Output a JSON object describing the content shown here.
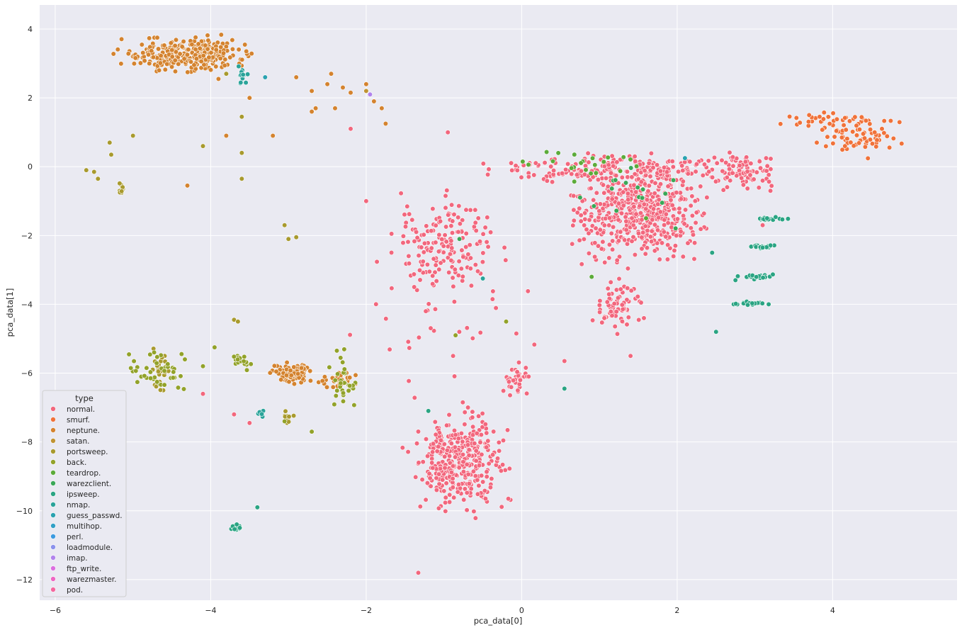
{
  "chart_data": {
    "type": "scatter",
    "title": "",
    "xlabel": "pca_data[0]",
    "ylabel": "pca_data[1]",
    "xlim": [
      -6.2,
      5.6
    ],
    "ylim": [
      -12.6,
      4.7
    ],
    "xticks": [
      -6,
      -4,
      -2,
      0,
      2,
      4
    ],
    "yticks": [
      -12,
      -10,
      -8,
      -6,
      -4,
      -2,
      0,
      2,
      4
    ],
    "grid": true,
    "legend": {
      "title": "type",
      "placement": "lower-left"
    },
    "series": [
      {
        "name": "normal.",
        "color": "#f2677d",
        "clusters": [
          {
            "x": [
              0.4,
              2.6
            ],
            "y": [
              -3.2,
              0.6
            ],
            "n": 520
          },
          {
            "x": [
              -1.6,
              0.0
            ],
            "y": [
              -10.4,
              -6.8
            ],
            "n": 360
          },
          {
            "x": [
              -2.0,
              0.0
            ],
            "y": [
              -4.2,
              -0.3
            ],
            "n": 160
          },
          {
            "x": [
              -1.0,
              3.5
            ],
            "y": [
              -0.6,
              0.5
            ],
            "n": 200
          },
          {
            "x": [
              0.8,
              1.7
            ],
            "y": [
              -5.0,
              -3.0
            ],
            "n": 70
          },
          {
            "x": [
              2.2,
              3.5
            ],
            "y": [
              -0.8,
              0.5
            ],
            "n": 80
          },
          {
            "x": [
              -0.3,
              0.2
            ],
            "y": [
              -7.0,
              -5.4
            ],
            "n": 35
          },
          {
            "x": [
              -2.4,
              0.5
            ],
            "y": [
              -7.8,
              -0.9
            ],
            "n": 40
          }
        ],
        "points": [
          [
            -1.33,
            -11.8
          ],
          [
            -4.1,
            -6.6
          ],
          [
            -3.7,
            -7.2
          ],
          [
            -3.5,
            -7.45
          ],
          [
            -2.2,
            1.1
          ],
          [
            -2.0,
            -1.0
          ],
          [
            -0.95,
            1.0
          ],
          [
            1.4,
            -5.5
          ],
          [
            0.55,
            -5.65
          ],
          [
            3.1,
            -1.7
          ],
          [
            3.2,
            -0.7
          ]
        ]
      },
      {
        "name": "smurf.",
        "color": "#f0723a",
        "clusters": [
          {
            "x": [
              3.5,
              5.1
            ],
            "y": [
              0.2,
              1.6
            ],
            "n": 70
          },
          {
            "x": [
              3.0,
              4.8
            ],
            "y": [
              1.05,
              1.7
            ],
            "n": 30
          }
        ],
        "points": []
      },
      {
        "name": "neptune.",
        "color": "#d4832f",
        "clusters": [
          {
            "x": [
              -5.3,
              -3.3
            ],
            "y": [
              2.6,
              3.95
            ],
            "n": 300
          },
          {
            "x": [
              -3.3,
              -2.6
            ],
            "y": [
              -6.4,
              -5.6
            ],
            "n": 90
          },
          {
            "x": [
              -2.7,
              -2.0
            ],
            "y": [
              -6.6,
              -5.8
            ],
            "n": 30
          }
        ],
        "points": [
          [
            -2.9,
            2.6
          ],
          [
            -2.7,
            2.2
          ],
          [
            -2.45,
            2.7
          ],
          [
            -2.5,
            2.4
          ],
          [
            -2.3,
            2.3
          ],
          [
            -2.2,
            2.15
          ],
          [
            -2.0,
            2.4
          ],
          [
            -1.9,
            1.9
          ],
          [
            -1.8,
            1.7
          ],
          [
            -1.75,
            1.25
          ],
          [
            -2.7,
            1.6
          ],
          [
            -2.4,
            1.7
          ],
          [
            -2.65,
            1.7
          ],
          [
            -3.5,
            2.0
          ],
          [
            -3.2,
            0.9
          ],
          [
            -3.8,
            0.9
          ],
          [
            -4.3,
            -0.55
          ],
          [
            -4.5,
            2.9
          ],
          [
            -3.9,
            2.55
          ]
        ]
      },
      {
        "name": "satan.",
        "color": "#c09433",
        "clusters": [],
        "points": [
          [
            -2.0,
            2.2
          ]
        ]
      },
      {
        "name": "portsweep.",
        "color": "#a89a2e",
        "clusters": [
          {
            "x": [
              -5.2,
              -5.1
            ],
            "y": [
              -1.0,
              -0.4
            ],
            "n": 10
          },
          {
            "x": [
              -4.8,
              -4.5
            ],
            "y": [
              -6.9,
              -5.0
            ],
            "n": 28
          },
          {
            "x": [
              -3.1,
              -2.9
            ],
            "y": [
              -7.5,
              -7.0
            ],
            "n": 10
          }
        ],
        "points": [
          [
            -5.5,
            -0.15
          ],
          [
            -5.45,
            -0.35
          ],
          [
            -5.6,
            -0.1
          ],
          [
            -5.3,
            0.7
          ],
          [
            -5.28,
            0.35
          ],
          [
            -5.0,
            0.9
          ],
          [
            -4.1,
            0.6
          ],
          [
            -3.6,
            -0.35
          ],
          [
            -3.6,
            0.4
          ],
          [
            -3.05,
            -1.7
          ],
          [
            -3.0,
            -2.1
          ],
          [
            -2.9,
            -2.05
          ],
          [
            -3.6,
            1.45
          ],
          [
            -3.8,
            2.7
          ],
          [
            -3.7,
            -4.45
          ],
          [
            -3.65,
            -4.5
          ]
        ]
      },
      {
        "name": "back.",
        "color": "#92a22a",
        "clusters": [
          {
            "x": [
              -5.3,
              -4.1
            ],
            "y": [
              -6.9,
              -4.8
            ],
            "n": 40
          },
          {
            "x": [
              -3.8,
              -3.4
            ],
            "y": [
              -6.0,
              -5.3
            ],
            "n": 18
          },
          {
            "x": [
              -2.6,
              -2.0
            ],
            "y": [
              -7.5,
              -4.6
            ],
            "n": 30
          }
        ],
        "points": [
          [
            -4.1,
            -5.8
          ],
          [
            -3.95,
            -5.25
          ],
          [
            -3.05,
            -7.4
          ],
          [
            -2.7,
            -7.7
          ],
          [
            -0.2,
            -4.5
          ],
          [
            -0.85,
            -4.9
          ]
        ]
      },
      {
        "name": "teardrop.",
        "color": "#5cab3a",
        "clusters": [
          {
            "x": [
              -0.2,
              1.8
            ],
            "y": [
              -0.6,
              0.8
            ],
            "n": 22
          }
        ],
        "points": [
          [
            1.6,
            -1.5
          ],
          [
            0.9,
            -3.2
          ]
        ]
      },
      {
        "name": "warezclient.",
        "color": "#3aa858",
        "clusters": [
          {
            "x": [
              0.5,
              2.4
            ],
            "y": [
              -2.2,
              0.9
            ],
            "n": 16
          }
        ],
        "points": [
          [
            -0.8,
            -2.1
          ]
        ]
      },
      {
        "name": "ipsweep.",
        "color": "#2aa483",
        "clusters": [
          {
            "x": [
              2.9,
              3.5
            ],
            "y": [
              -1.6,
              -1.45
            ],
            "n": 22
          },
          {
            "x": [
              2.8,
              3.4
            ],
            "y": [
              -2.4,
              -2.25
            ],
            "n": 22
          },
          {
            "x": [
              2.7,
              3.4
            ],
            "y": [
              -3.3,
              -3.1
            ],
            "n": 22
          },
          {
            "x": [
              2.65,
              3.25
            ],
            "y": [
              -4.05,
              -3.9
            ],
            "n": 20
          },
          {
            "x": [
              -3.75,
              -3.55
            ],
            "y": [
              -10.6,
              -10.35
            ],
            "n": 16
          }
        ],
        "points": [
          [
            2.5,
            -4.8
          ],
          [
            -3.4,
            -9.9
          ],
          [
            -1.2,
            -7.1
          ],
          [
            0.55,
            -6.45
          ],
          [
            2.75,
            -3.3
          ],
          [
            2.45,
            -2.5
          ]
        ]
      },
      {
        "name": "nmap.",
        "color": "#2aa39a",
        "clusters": [
          {
            "x": [
              -3.7,
              -3.45
            ],
            "y": [
              2.3,
              2.95
            ],
            "n": 14
          },
          {
            "x": [
              -3.45,
              -3.25
            ],
            "y": [
              -7.3,
              -7.05
            ],
            "n": 6
          }
        ],
        "points": [
          [
            -0.5,
            -3.25
          ]
        ]
      },
      {
        "name": "guess_passwd.",
        "color": "#2aa2b0",
        "clusters": [],
        "points": [
          [
            -3.3,
            2.6
          ],
          [
            2.1,
            0.25
          ]
        ]
      },
      {
        "name": "multihop.",
        "color": "#31a0c6",
        "clusters": [],
        "points": []
      },
      {
        "name": "perl.",
        "color": "#3d9be0",
        "clusters": [],
        "points": []
      },
      {
        "name": "loadmodule.",
        "color": "#8b91ec",
        "clusters": [],
        "points": []
      },
      {
        "name": "imap.",
        "color": "#b183ec",
        "clusters": [],
        "points": [
          [
            -1.95,
            2.1
          ]
        ]
      },
      {
        "name": "ftp_write.",
        "color": "#dc6fdf",
        "clusters": [],
        "points": []
      },
      {
        "name": "warezmaster.",
        "color": "#ee67c3",
        "clusters": [],
        "points": []
      },
      {
        "name": "pod.",
        "color": "#f4689f",
        "clusters": [],
        "points": []
      }
    ]
  }
}
